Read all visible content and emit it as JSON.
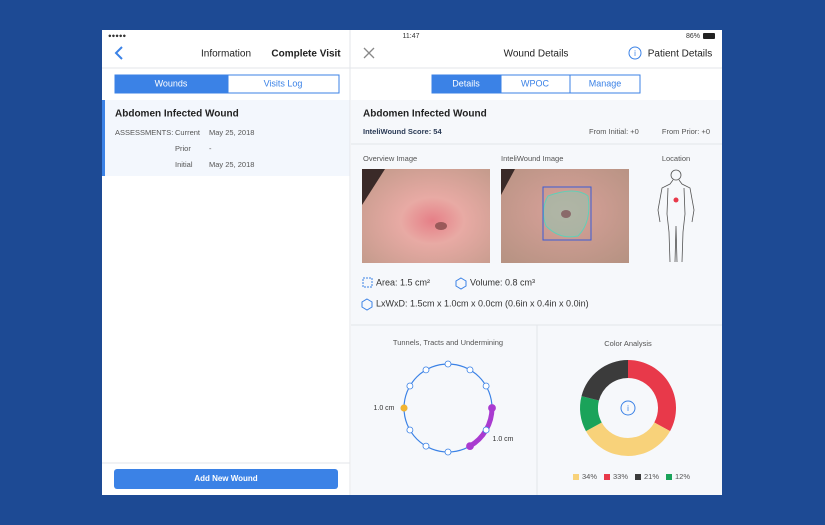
{
  "status_bar": {
    "time": "11:47",
    "battery": "86%"
  },
  "left_panel": {
    "nav": {
      "title": "Information",
      "action": "Complete Visit"
    },
    "tabs": [
      "Wounds",
      "Visits Log"
    ],
    "wound": {
      "title": "Abdomen Infected Wound",
      "assessments_label": "ASSESSMENTS:",
      "rows": [
        [
          "Current",
          "May 25, 2018"
        ],
        [
          "Prior",
          "-"
        ],
        [
          "Initial",
          "May 25, 2018"
        ]
      ]
    },
    "button": "Add New Wound"
  },
  "right_panel": {
    "nav": {
      "title": "Wound Details",
      "action": "Patient Details"
    },
    "tabs": [
      "Details",
      "WPOC",
      "Manage"
    ],
    "title": "Abdomen Infected Wound",
    "score": "InteliWound Score: 54",
    "from_initial": "From Initial: +0",
    "from_prior": "From Prior: +0",
    "image_labels": [
      "Overview Image",
      "InteliWound Image",
      "Location"
    ],
    "area": "Area: 1.5 cm²",
    "volume": "Volume: 0.8 cm³",
    "dimensions": "LxWxD: 1.5cm x 1.0cm x 0.0cm (0.6in x 0.4in x 0.0in)",
    "tunnels": {
      "title": "Tunnels, Tracts and Undermining",
      "labels": [
        "1.0 cm",
        "1.0 cm"
      ]
    },
    "color_analysis": {
      "title": "Color Analysis",
      "values": [
        33,
        34,
        12,
        21
      ],
      "value_labels": [
        "33%",
        "34%",
        "12%",
        "21%"
      ],
      "colors": [
        "#e8394a",
        "#f8d27a",
        "#1aa35a",
        "#3b3b3b"
      ]
    }
  }
}
